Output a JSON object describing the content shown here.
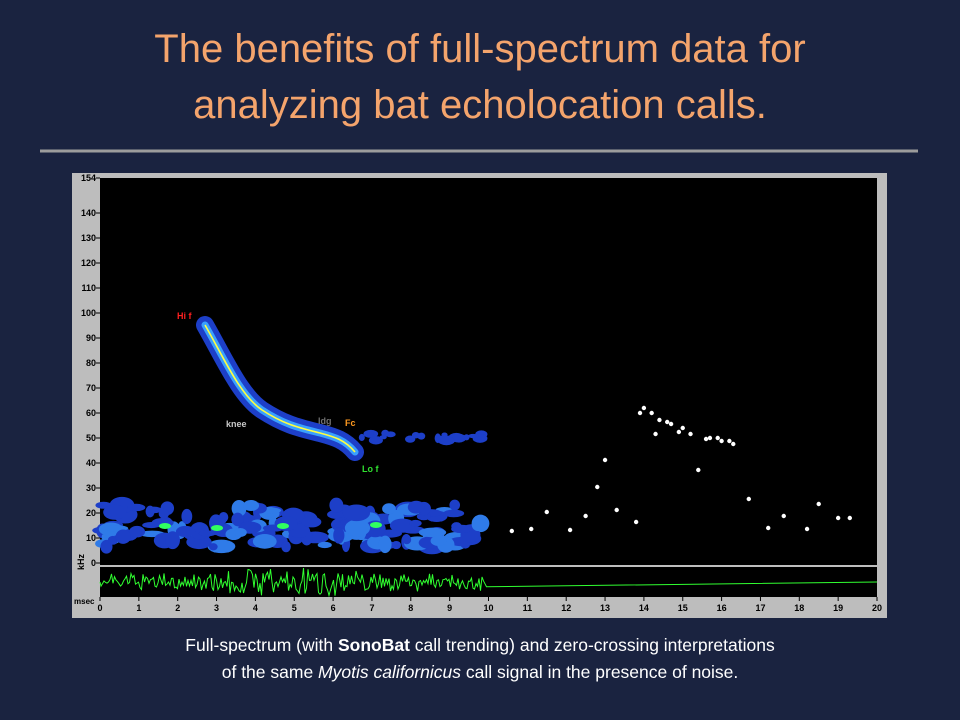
{
  "title": [
    "The benefits of full-spectrum data for",
    "analyzing bat echolocation calls."
  ],
  "caption": {
    "line1": [
      "Full-spectrum (with ",
      "SonoBat",
      " call trending) and zero-crossing interpretations"
    ],
    "line2": [
      "of the same ",
      "Myotis californicus",
      " call signal in the presence of noise."
    ]
  },
  "annotations": {
    "hi_f": "Hi f",
    "knee": "knee",
    "ldg": "ldg",
    "fc": "Fc",
    "lo_f": "Lo f"
  },
  "chart_data": {
    "type": "scatter",
    "ylabel": "kHz",
    "xlabel": "msec",
    "color": "#ffffff",
    "x": [
      10.6,
      11.1,
      11.5,
      12.1,
      12.5,
      12.8,
      13.0,
      13.3,
      13.8,
      13.9,
      14.0,
      14.2,
      14.3,
      14.4,
      14.6,
      14.7,
      14.9,
      15.0,
      15.2,
      15.4,
      15.6,
      15.7,
      15.9,
      16.0,
      16.2,
      16.3,
      16.7,
      17.2,
      17.6,
      18.2,
      18.5,
      19.0,
      19.3
    ],
    "values": [
      12.8,
      13.6,
      20.4,
      13.2,
      18.8,
      30.4,
      41.2,
      21.2,
      16.4,
      60,
      62,
      60,
      51.6,
      57.2,
      56.4,
      55.6,
      52.4,
      54,
      51.6,
      37.2,
      49.6,
      50,
      50,
      48.8,
      48.8,
      47.6,
      25.6,
      14,
      18.8,
      13.6,
      23.6,
      18,
      18
    ],
    "xlim": [
      0,
      20
    ],
    "ylim": [
      0,
      154
    ],
    "xticks": [
      0,
      1,
      2,
      3,
      4,
      5,
      6,
      7,
      8,
      9,
      10,
      11,
      12,
      13,
      14,
      15,
      16,
      17,
      18,
      19,
      20
    ],
    "yticks": [
      0,
      10,
      20,
      30,
      40,
      50,
      60,
      70,
      80,
      90,
      100,
      110,
      120,
      130,
      140,
      154
    ]
  }
}
